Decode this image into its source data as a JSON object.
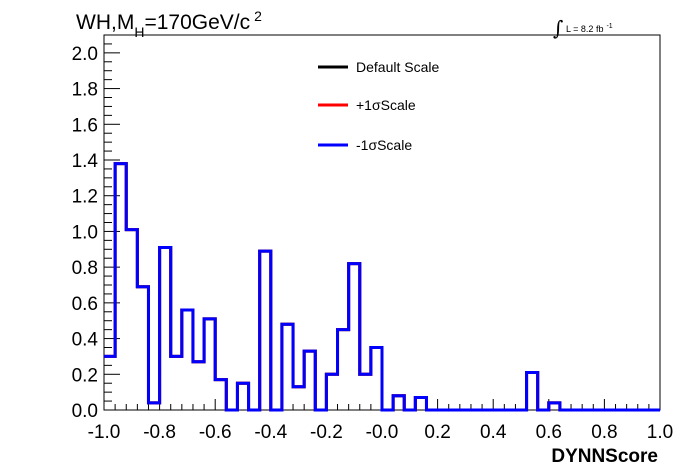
{
  "chart_data": {
    "type": "histogram",
    "title": {
      "main": "WH,M",
      "sub": "H",
      "rest": "=170GeV/c",
      "sup": "2"
    },
    "lumi": {
      "symbol": "∫",
      "text": "L = 8.2 fb",
      "sup": "-1"
    },
    "xlabel": "DYNNScore",
    "ylabel": "",
    "xlim": [
      -1.0,
      1.0
    ],
    "ylim": [
      0.0,
      2.1
    ],
    "grid": false,
    "legend_position": "top-center",
    "x_ticks": [
      "-1.0",
      "-0.8",
      "-0.6",
      "-0.4",
      "-0.2",
      "-0.0",
      "0.2",
      "0.4",
      "0.6",
      "0.8",
      "1.0"
    ],
    "y_ticks": [
      "0.0",
      "0.2",
      "0.4",
      "0.6",
      "0.8",
      "1.0",
      "1.2",
      "1.4",
      "1.6",
      "1.8",
      "2.0"
    ],
    "bin_edges_start": -1.0,
    "bin_width": 0.04,
    "series": [
      {
        "name": "Default Scale",
        "color": "#000000",
        "values": [
          0.3,
          1.38,
          1.01,
          0.69,
          0.04,
          0.91,
          0.3,
          0.56,
          0.27,
          0.51,
          0.17,
          0.0,
          0.15,
          0.0,
          0.89,
          0.0,
          0.48,
          0.13,
          0.33,
          0.0,
          0.2,
          0.45,
          0.82,
          0.2,
          0.35,
          0.0,
          0.08,
          0.0,
          0.07,
          0.0,
          0.0,
          0.0,
          0.0,
          0.0,
          0.0,
          0.0,
          0.0,
          0.0,
          0.21,
          0.0,
          0.04,
          0.0,
          0.0,
          0.0,
          0.0,
          0.0,
          0.0,
          0.0,
          0.0,
          0.0
        ]
      },
      {
        "name": "+1σScale",
        "color": "#ff0000",
        "values": [
          0.3,
          1.38,
          1.01,
          0.69,
          0.04,
          0.91,
          0.3,
          0.56,
          0.27,
          0.51,
          0.17,
          0.0,
          0.15,
          0.0,
          0.89,
          0.0,
          0.48,
          0.13,
          0.33,
          0.0,
          0.2,
          0.45,
          0.82,
          0.2,
          0.35,
          0.0,
          0.08,
          0.0,
          0.07,
          0.0,
          0.0,
          0.0,
          0.0,
          0.0,
          0.0,
          0.0,
          0.0,
          0.0,
          0.21,
          0.0,
          0.04,
          0.0,
          0.0,
          0.0,
          0.0,
          0.0,
          0.0,
          0.0,
          0.0,
          0.0
        ]
      },
      {
        "name": "-1σScale",
        "color": "#0000ff",
        "values": [
          0.3,
          1.38,
          1.01,
          0.69,
          0.04,
          0.91,
          0.3,
          0.56,
          0.27,
          0.51,
          0.17,
          0.0,
          0.15,
          0.0,
          0.89,
          0.0,
          0.48,
          0.13,
          0.33,
          0.0,
          0.2,
          0.45,
          0.82,
          0.2,
          0.35,
          0.0,
          0.08,
          0.0,
          0.07,
          0.0,
          0.0,
          0.0,
          0.0,
          0.0,
          0.0,
          0.0,
          0.0,
          0.0,
          0.21,
          0.0,
          0.04,
          0.0,
          0.0,
          0.0,
          0.0,
          0.0,
          0.0,
          0.0,
          0.0,
          0.0
        ]
      }
    ]
  }
}
